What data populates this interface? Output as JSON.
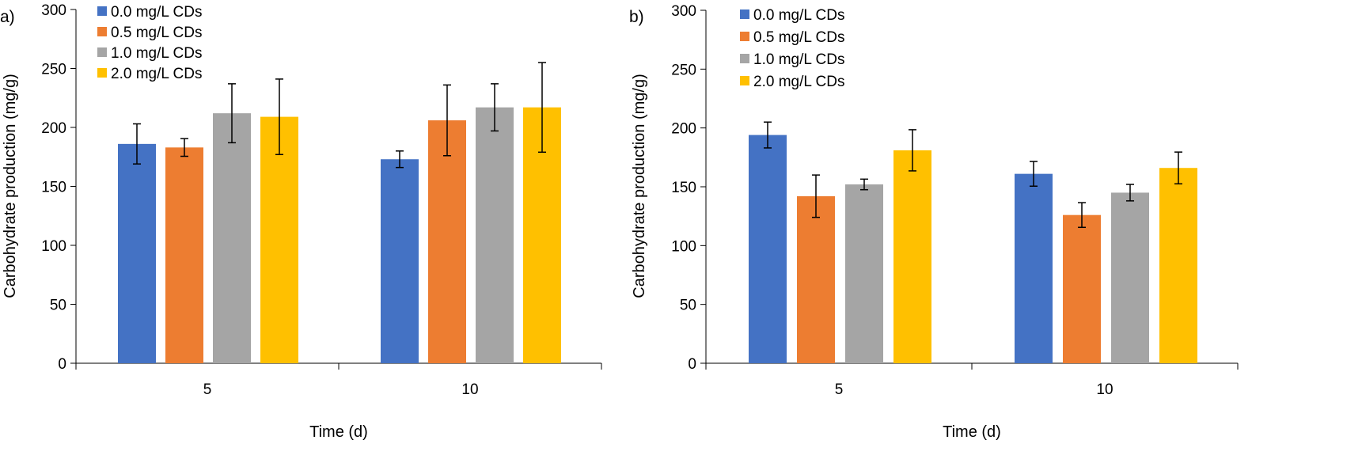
{
  "colors": {
    "0.0": "#4472C4",
    "0.5": "#ED7D31",
    "1.0": "#A5A5A5",
    "2.0": "#FFC000"
  },
  "chart_data": [
    {
      "type": "bar",
      "panel_label": "a)",
      "xlabel": "Time (d)",
      "ylabel": "Carbohydrate production (mg/g)",
      "ylim": [
        0,
        300
      ],
      "yticks": [
        0,
        50,
        100,
        150,
        200,
        250,
        300
      ],
      "categories": [
        "5",
        "10"
      ],
      "legend_position": "top-left",
      "series": [
        {
          "name": "0.0 mg/L CDs",
          "values": [
            186,
            173
          ],
          "errors": [
            17,
            7
          ]
        },
        {
          "name": "0.5 mg/L CDs",
          "values": [
            183,
            206
          ],
          "errors": [
            7.5,
            30
          ]
        },
        {
          "name": "1.0 mg/L CDs",
          "values": [
            212,
            217
          ],
          "errors": [
            25,
            20
          ]
        },
        {
          "name": "2.0 mg/L CDs",
          "values": [
            209,
            217
          ],
          "errors": [
            32,
            38
          ]
        }
      ]
    },
    {
      "type": "bar",
      "panel_label": "b)",
      "xlabel": "Time (d)",
      "ylabel": "Carbohydrate production (mg/g)",
      "ylim": [
        0,
        300
      ],
      "yticks": [
        0,
        50,
        100,
        150,
        200,
        250,
        300
      ],
      "categories": [
        "5",
        "10"
      ],
      "legend_position": "top-left",
      "series": [
        {
          "name": "0.0 mg/L CDs",
          "values": [
            194,
            161
          ],
          "errors": [
            11,
            10.5
          ]
        },
        {
          "name": "0.5 mg/L CDs",
          "values": [
            142,
            126
          ],
          "errors": [
            18,
            10.5
          ]
        },
        {
          "name": "1.0 mg/L CDs",
          "values": [
            152,
            145
          ],
          "errors": [
            4.5,
            7
          ]
        },
        {
          "name": "2.0 mg/L CDs",
          "values": [
            181,
            166
          ],
          "errors": [
            17.5,
            13.5
          ]
        }
      ]
    }
  ]
}
